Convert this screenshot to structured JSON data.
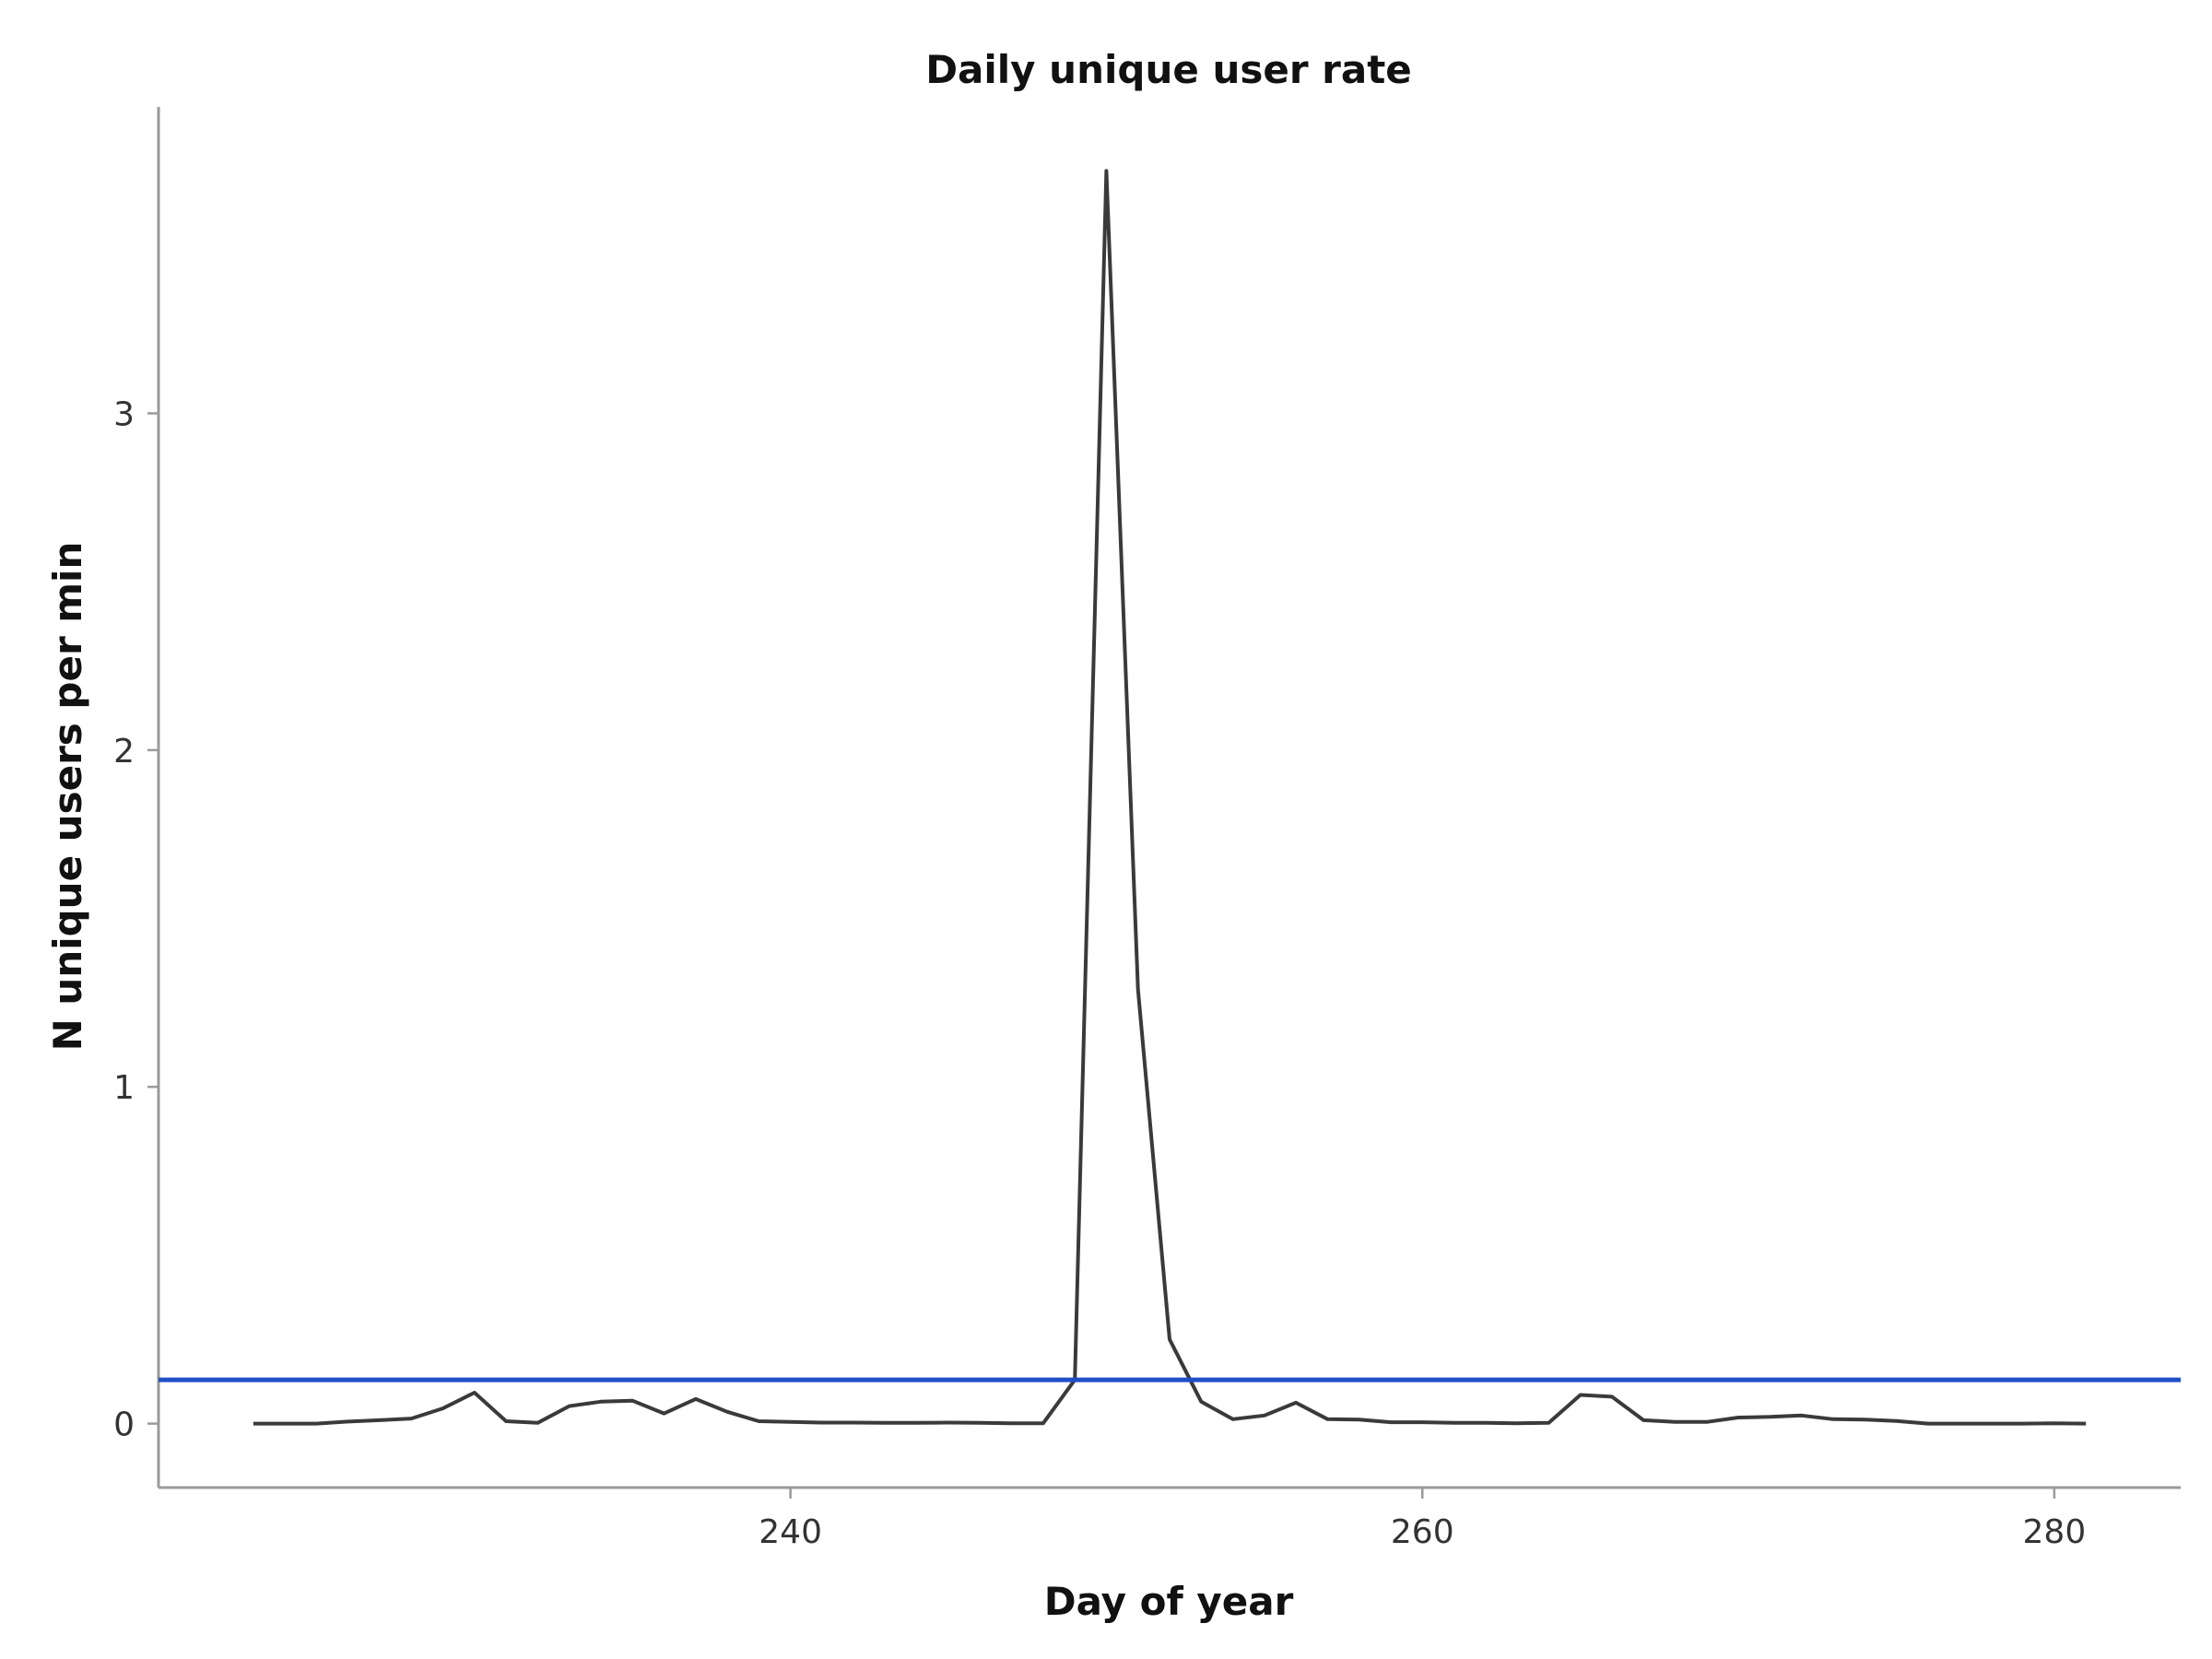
{
  "chart_data": {
    "type": "line",
    "title": "Daily unique user rate",
    "xlabel": "Day of year",
    "ylabel": "N unique users per min",
    "xlim": [
      220,
      284
    ],
    "ylim": [
      -0.19,
      3.91
    ],
    "xticks": [
      240,
      260,
      280
    ],
    "yticks": [
      0,
      1,
      2,
      3
    ],
    "grid": false,
    "series": [
      {
        "x": [
          223,
          224,
          225,
          226,
          227,
          228,
          229,
          230,
          231,
          232,
          233,
          234,
          235,
          236,
          237,
          238,
          239,
          240,
          241,
          242,
          243,
          244,
          245,
          246,
          247,
          248,
          249,
          250,
          251,
          252,
          253,
          254,
          255,
          256,
          257,
          258,
          259,
          260,
          261,
          262,
          263,
          264,
          265,
          266,
          267,
          268,
          269,
          270,
          271,
          272,
          273,
          274,
          275,
          276,
          277,
          278,
          279,
          280,
          281
        ],
        "y": [
          0.0,
          0.0,
          0.0,
          0.006,
          0.01,
          0.015,
          0.045,
          0.092,
          0.007,
          0.002,
          0.052,
          0.065,
          0.068,
          0.03,
          0.073,
          0.035,
          0.007,
          0.005,
          0.003,
          0.003,
          0.002,
          0.002,
          0.003,
          0.002,
          0.001,
          0.001,
          0.13,
          3.72,
          1.29,
          0.25,
          0.065,
          0.013,
          0.024,
          0.062,
          0.013,
          0.012,
          0.004,
          0.004,
          0.002,
          0.002,
          0.001,
          0.002,
          0.085,
          0.08,
          0.01,
          0.005,
          0.005,
          0.018,
          0.02,
          0.024,
          0.013,
          0.012,
          0.008,
          0.0,
          0.0,
          0.0,
          0.0,
          0.001,
          0.0
        ],
        "color": "#3a3a3a"
      }
    ],
    "reference_lines": [
      {
        "orientation": "horizontal",
        "y": 0.13,
        "color": "#1f4fc8"
      }
    ]
  }
}
